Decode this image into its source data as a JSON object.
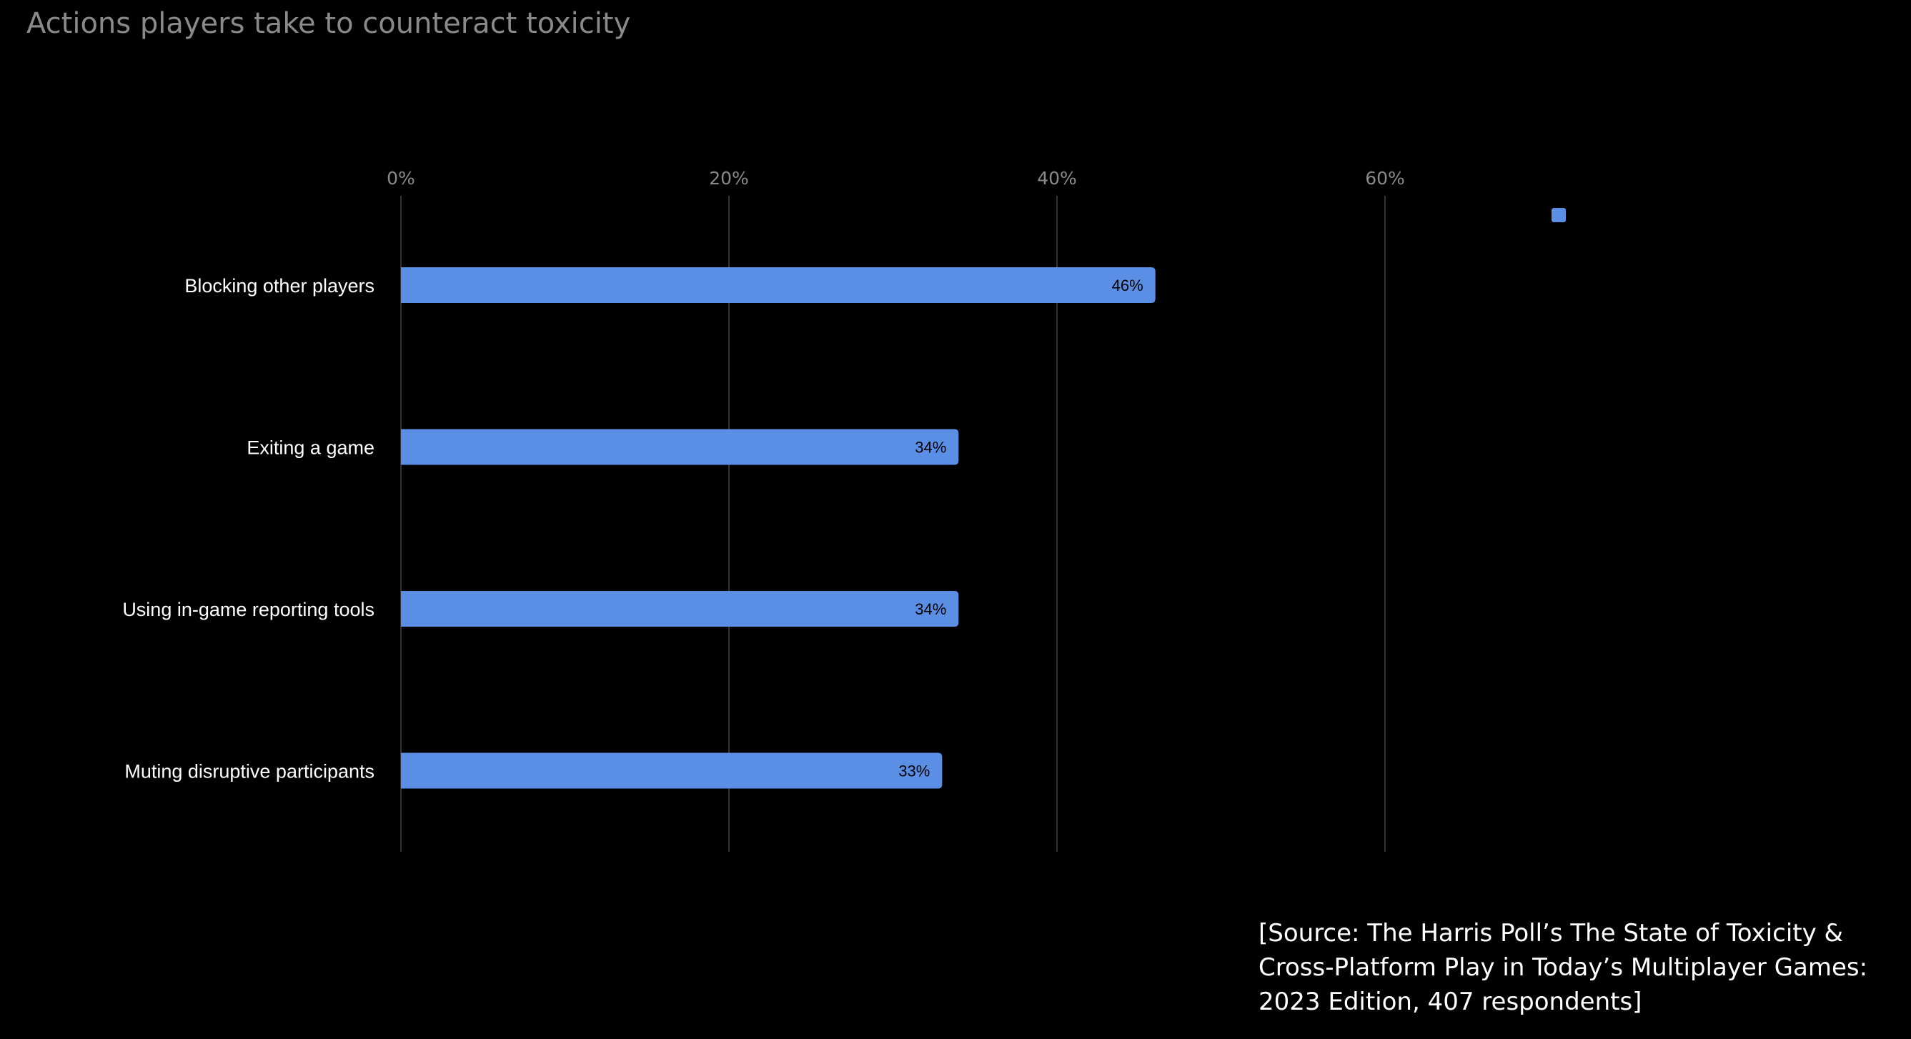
{
  "chart_data": {
    "type": "bar",
    "orientation": "horizontal",
    "title": "Actions players take to counteract toxicity",
    "categories": [
      "Blocking other players",
      "Exiting a game",
      "Using in-game reporting tools",
      "Muting disruptive participants"
    ],
    "values": [
      46,
      34,
      34,
      33
    ],
    "data_labels": [
      "46%",
      "34%",
      "34%",
      "33%"
    ],
    "x_ticks": [
      "0%",
      "20%",
      "40%",
      "60%"
    ],
    "tick_values": [
      0,
      20,
      40,
      60
    ],
    "xlim": [
      0,
      60
    ],
    "xlabel": "",
    "ylabel": "",
    "grid": true,
    "axis_position": "top",
    "legend": {
      "position": "top-right",
      "entries": [
        ""
      ]
    },
    "bar_color": "#5b8fe6",
    "background_color": "#000000",
    "grid_color": "#333333"
  },
  "source_note": "[Source: The Harris Poll’s The State of Toxicity & Cross-Platform Play in Today’s Multiplayer Games: 2023 Edition, 407 respondents]"
}
